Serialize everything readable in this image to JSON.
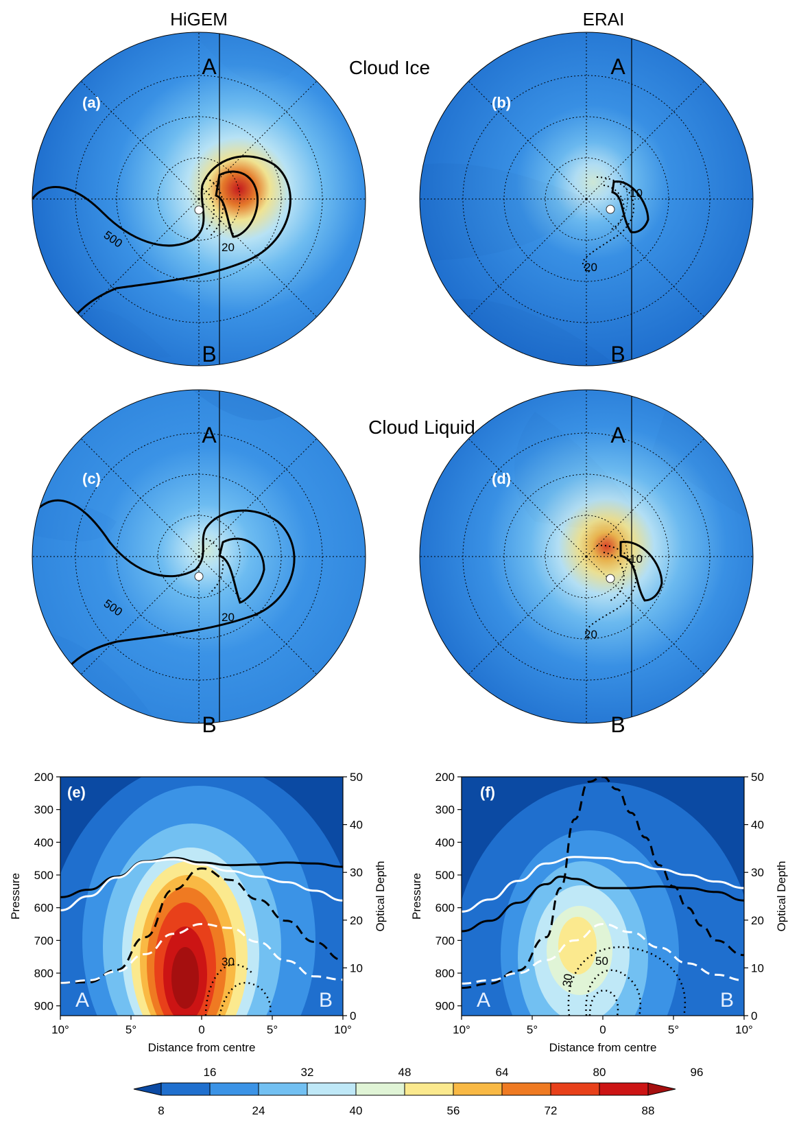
{
  "header": {
    "left": "HiGEM",
    "right": "ERAI",
    "row1": "Cloud Ice",
    "row2": "Cloud Liquid"
  },
  "polar_panels": [
    {
      "label": "(a)",
      "top": "A",
      "bottom": "B",
      "contours": [
        "500",
        "20"
      ]
    },
    {
      "label": "(b)",
      "top": "A",
      "bottom": "B",
      "contours": [
        "10",
        "20"
      ]
    },
    {
      "label": "(c)",
      "top": "A",
      "bottom": "B",
      "contours": [
        "500",
        "20"
      ]
    },
    {
      "label": "(d)",
      "top": "A",
      "bottom": "B",
      "contours": [
        "10",
        "20"
      ]
    }
  ],
  "colors": {
    "levels": [
      "#0b4aa3",
      "#1f6fce",
      "#3b93e6",
      "#72c0f2",
      "#bfe8f7",
      "#e0f4d6",
      "#fbe98e",
      "#f9b944",
      "#ef7a22",
      "#e8401a",
      "#cc1414",
      "#a50f0f"
    ],
    "edge": "#000000"
  },
  "chart_data": [
    {
      "type": "heatmap",
      "panel": "(e)",
      "xlabel": "Distance from centre",
      "ylabel": "Pressure",
      "y2label": "Optical Depth",
      "x_ticks": [
        "10°",
        "5°",
        "0",
        "5°",
        "10°"
      ],
      "x_tick_values": [
        -10,
        -5,
        0,
        5,
        10
      ],
      "y_ticks": [
        200,
        300,
        400,
        500,
        600,
        700,
        800,
        900
      ],
      "y2_ticks": [
        0,
        10,
        20,
        30,
        40,
        50
      ],
      "xlim": [
        -10,
        10
      ],
      "ylim": [
        200,
        930
      ],
      "y2lim": [
        0,
        50
      ],
      "corner_labels": [
        "A",
        "B"
      ],
      "contour_labels": [
        "30"
      ],
      "series": [
        {
          "style": "solid-black",
          "x": [
            -10,
            -8,
            -6,
            -4,
            -2,
            0,
            2,
            4,
            6,
            8,
            10
          ],
          "y": [
            568,
            545,
            505,
            458,
            448,
            462,
            470,
            468,
            462,
            465,
            475
          ]
        },
        {
          "style": "solid-white",
          "x": [
            -10,
            -8,
            -6,
            -4,
            -2,
            0,
            2,
            4,
            6,
            8,
            10
          ],
          "y": [
            608,
            565,
            508,
            460,
            452,
            468,
            488,
            505,
            522,
            548,
            578
          ]
        },
        {
          "style": "dashed-black",
          "x": [
            -10,
            -8,
            -6,
            -4,
            -2,
            0,
            2,
            4,
            6,
            8,
            10
          ],
          "y": [
            830,
            828,
            790,
            690,
            545,
            480,
            515,
            575,
            640,
            705,
            760
          ]
        },
        {
          "style": "dashed-white",
          "x": [
            -10,
            -8,
            -6,
            -4,
            -2,
            0,
            2,
            4,
            6,
            8,
            10
          ],
          "y": [
            830,
            822,
            795,
            742,
            680,
            650,
            662,
            705,
            762,
            810,
            820
          ]
        }
      ]
    },
    {
      "type": "heatmap",
      "panel": "(f)",
      "xlabel": "Distance from centre",
      "ylabel": "Pressure",
      "y2label": "Optical Depth",
      "x_ticks": [
        "10°",
        "5°",
        "0",
        "5°",
        "10°"
      ],
      "x_tick_values": [
        -10,
        -5,
        0,
        5,
        10
      ],
      "y_ticks": [
        200,
        300,
        400,
        500,
        600,
        700,
        800,
        900
      ],
      "y2_ticks": [
        0,
        10,
        20,
        30,
        40,
        50
      ],
      "xlim": [
        -10,
        10
      ],
      "ylim": [
        200,
        930
      ],
      "y2lim": [
        0,
        50
      ],
      "corner_labels": [
        "A",
        "B"
      ],
      "contour_labels": [
        "50",
        "30"
      ],
      "series": [
        {
          "style": "solid-black",
          "x": [
            -10,
            -8,
            -6,
            -4,
            -3,
            -2,
            0,
            2,
            4,
            6,
            8,
            10
          ],
          "y": [
            672,
            640,
            585,
            528,
            505,
            512,
            540,
            540,
            535,
            540,
            552,
            578
          ]
        },
        {
          "style": "solid-white",
          "x": [
            -10,
            -8,
            -6,
            -4,
            -2,
            0,
            2,
            4,
            6,
            8,
            10
          ],
          "y": [
            612,
            575,
            518,
            465,
            445,
            448,
            462,
            482,
            500,
            520,
            540
          ]
        },
        {
          "style": "dashed-black",
          "x": [
            -10,
            -8,
            -6,
            -4,
            -3,
            -2,
            -1,
            0,
            1,
            2,
            3,
            4,
            5,
            6,
            7,
            8,
            10
          ],
          "y": [
            845,
            832,
            792,
            690,
            540,
            330,
            215,
            200,
            238,
            310,
            385,
            470,
            535,
            600,
            655,
            700,
            745
          ]
        },
        {
          "style": "dashed-white",
          "x": [
            -10,
            -8,
            -6,
            -4,
            -2,
            0,
            2,
            4,
            6,
            8,
            10
          ],
          "y": [
            832,
            822,
            800,
            760,
            700,
            650,
            675,
            722,
            770,
            805,
            822
          ]
        }
      ]
    }
  ],
  "colorbar": {
    "upper_labels": [
      "16",
      "32",
      "48",
      "64",
      "80",
      "96"
    ],
    "lower_labels": [
      "8",
      "24",
      "40",
      "56",
      "72",
      "88"
    ]
  }
}
